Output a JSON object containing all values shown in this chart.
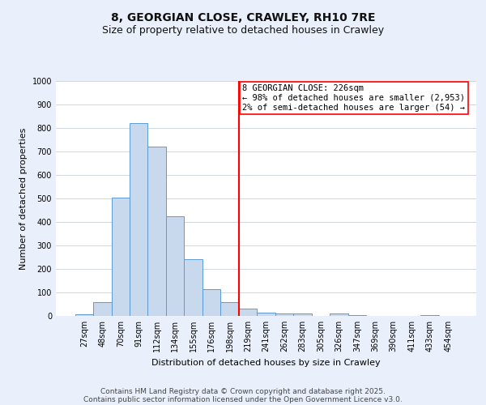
{
  "title": "8, GEORGIAN CLOSE, CRAWLEY, RH10 7RE",
  "subtitle": "Size of property relative to detached houses in Crawley",
  "xlabel": "Distribution of detached houses by size in Crawley",
  "ylabel": "Number of detached properties",
  "categories": [
    "27sqm",
    "48sqm",
    "70sqm",
    "91sqm",
    "112sqm",
    "134sqm",
    "155sqm",
    "176sqm",
    "198sqm",
    "219sqm",
    "241sqm",
    "262sqm",
    "283sqm",
    "305sqm",
    "326sqm",
    "347sqm",
    "369sqm",
    "390sqm",
    "411sqm",
    "433sqm",
    "454sqm"
  ],
  "bar_heights": [
    8,
    57,
    505,
    820,
    720,
    425,
    240,
    115,
    57,
    30,
    13,
    10,
    10,
    0,
    10,
    3,
    0,
    0,
    0,
    5,
    0
  ],
  "bar_color": "#c9d9ed",
  "bar_edge_color": "#5b9bd5",
  "ylim": [
    0,
    1000
  ],
  "yticks": [
    0,
    100,
    200,
    300,
    400,
    500,
    600,
    700,
    800,
    900,
    1000
  ],
  "vline_x": 9,
  "annotation_text": "8 GEORGIAN CLOSE: 226sqm\n← 98% of detached houses are smaller (2,953)\n2% of semi-detached houses are larger (54) →",
  "footer_line1": "Contains HM Land Registry data © Crown copyright and database right 2025.",
  "footer_line2": "Contains public sector information licensed under the Open Government Licence v3.0.",
  "bg_color": "#eaf0fb",
  "plot_bg_color": "#ffffff",
  "grid_color": "#c8d0dc",
  "title_fontsize": 10,
  "subtitle_fontsize": 9,
  "axis_label_fontsize": 8,
  "tick_fontsize": 7,
  "annotation_fontsize": 7.5,
  "footer_fontsize": 6.5
}
